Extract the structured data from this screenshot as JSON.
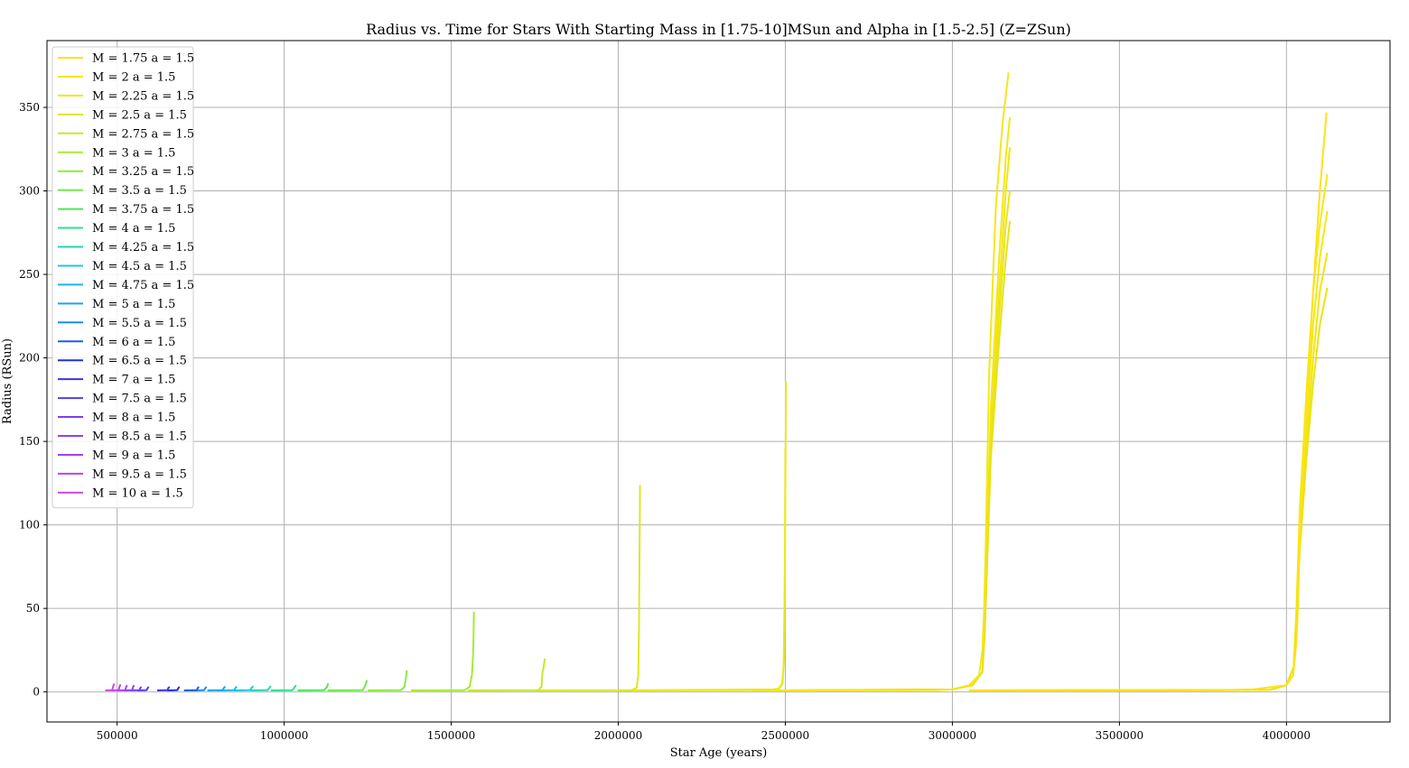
{
  "chart_data": {
    "type": "line",
    "title": "Radius vs. Time for Stars With Starting Mass in [1.75-10]MSun and Alpha in [1.5-2.5] (Z=ZSun)",
    "xlabel": "Star Age (years)",
    "ylabel": "Radius (RSun)",
    "xlim": [
      290000,
      4310000
    ],
    "ylim": [
      -18,
      390
    ],
    "x_ticks": [
      500000,
      1000000,
      1500000,
      2000000,
      2500000,
      3000000,
      3500000,
      4000000
    ],
    "x_tick_labels": [
      "500000",
      "1000000",
      "1500000",
      "2000000",
      "2500000",
      "3000000",
      "3500000",
      "4000000"
    ],
    "y_ticks": [
      0,
      50,
      100,
      150,
      200,
      250,
      300,
      350
    ],
    "y_tick_labels": [
      "0",
      "50",
      "100",
      "150",
      "200",
      "250",
      "300",
      "350"
    ],
    "grid": true,
    "legend_position": "upper-left",
    "series": [
      {
        "name": "M = 1.75 a = 1.5",
        "color": "#ffe119",
        "x": [
          3050000,
          3800000,
          3900000,
          4000000,
          4020000,
          4030000,
          4035000,
          4040000,
          4060000,
          4080000,
          4100000,
          4120000
        ],
        "y": [
          0.9,
          1.0,
          1.5,
          4,
          10,
          30,
          55,
          100,
          170,
          240,
          300,
          347
        ]
      },
      {
        "name": "M = 2 a = 1.5",
        "color": "#f5e61c",
        "x": [
          2400000,
          2950000,
          3000000,
          3050000,
          3080000,
          3090000,
          3095000,
          3100000,
          3110000,
          3130000,
          3150000,
          3168000
        ],
        "y": [
          0.9,
          1.0,
          1.5,
          4,
          10,
          25,
          50,
          90,
          190,
          290,
          340,
          371
        ]
      },
      {
        "name": "M = 2.25 a = 1.5",
        "color": "#ebe81f",
        "x": [
          2000000,
          2450000,
          2480000,
          2490000,
          2495000,
          2498000,
          2500000,
          2502000
        ],
        "y": [
          0.9,
          1.0,
          2.0,
          5,
          15,
          60,
          120,
          186
        ]
      },
      {
        "name": "M = 2.5 a = 1.5",
        "color": "#dbe824",
        "x": [
          1750000,
          2040000,
          2055000,
          2060000,
          2062000,
          2064000,
          2065000
        ],
        "y": [
          0.9,
          1.0,
          2.5,
          10,
          40,
          90,
          124
        ]
      },
      {
        "name": "M = 2.75 a = 1.5",
        "color": "#c5e82a",
        "x": [
          1550000,
          1760000,
          1770000,
          1773000,
          1776000,
          1778000,
          1780000
        ],
        "y": [
          0.9,
          1.0,
          3,
          12,
          14,
          17,
          20
        ]
      },
      {
        "name": "M = 3 a = 1.5",
        "color": "#a8ea34",
        "x": [
          1380000,
          1540000,
          1555000,
          1562000,
          1566000,
          1568000
        ],
        "y": [
          0.9,
          1.0,
          3,
          10,
          25,
          48
        ]
      },
      {
        "name": "M = 3.25 a = 1.5",
        "color": "#8ceb3e",
        "x": [
          1250000,
          1350000,
          1360000,
          1364000,
          1367000
        ],
        "y": [
          0.9,
          1.0,
          3,
          8,
          13
        ]
      },
      {
        "name": "M = 3.5 a = 1.5",
        "color": "#6fea48",
        "x": [
          1130000,
          1235000,
          1243000,
          1248000
        ],
        "y": [
          0.9,
          1.0,
          4,
          7
        ]
      },
      {
        "name": "M = 3.75 a = 1.5",
        "color": "#4ee65c",
        "x": [
          1040000,
          1120000,
          1128000,
          1132000
        ],
        "y": [
          0.9,
          1.0,
          3,
          5
        ]
      },
      {
        "name": "M = 4 a = 1.5",
        "color": "#2fe08a",
        "x": [
          960000,
          1025000,
          1032000,
          1036000
        ],
        "y": [
          0.9,
          1.0,
          3,
          4
        ]
      },
      {
        "name": "M = 4.25 a = 1.5",
        "color": "#22d6b4",
        "x": [
          900000,
          950000,
          956000,
          960000
        ],
        "y": [
          0.9,
          1.0,
          2.5,
          3.5
        ]
      },
      {
        "name": "M = 4.5 a = 1.5",
        "color": "#1ec8d8",
        "x": [
          850000,
          898000,
          903000,
          907000
        ],
        "y": [
          0.9,
          1.0,
          2.5,
          3.5
        ]
      },
      {
        "name": "M = 4.75 a = 1.5",
        "color": "#1cb6ec",
        "x": [
          800000,
          850000,
          855000,
          858000
        ],
        "y": [
          0.9,
          1.0,
          2.5,
          3.2
        ]
      },
      {
        "name": "M = 5 a = 1.5",
        "color": "#1aa4ee",
        "x": [
          770000,
          815000,
          820000,
          824000
        ],
        "y": [
          0.9,
          1.0,
          2.5,
          3.2
        ]
      },
      {
        "name": "M = 5.5 a = 1.5",
        "color": "#188cf0",
        "x": [
          720000,
          760000,
          765000,
          768000
        ],
        "y": [
          0.9,
          1.0,
          2.5,
          3.0
        ]
      },
      {
        "name": "M = 6 a = 1.5",
        "color": "#1a5fe0",
        "x": [
          700000,
          738000,
          742000,
          745000
        ],
        "y": [
          0.9,
          1.0,
          2.5,
          3.0
        ]
      },
      {
        "name": "M = 6.5 a = 1.5",
        "color": "#1f2fe8",
        "x": [
          650000,
          680000,
          684000,
          687000
        ],
        "y": [
          0.9,
          1.0,
          2.5,
          3.0
        ]
      },
      {
        "name": "M = 7 a = 1.5",
        "color": "#3a35e0",
        "x": [
          620000,
          650000,
          654000,
          657000
        ],
        "y": [
          0.9,
          1.0,
          2.5,
          3.0
        ]
      },
      {
        "name": "M = 7.5 a = 1.5",
        "color": "#5a3ae8",
        "x": [
          560000,
          588000,
          592000,
          595000
        ],
        "y": [
          0.9,
          1.0,
          2.5,
          3.0
        ]
      },
      {
        "name": "M = 8 a = 1.5",
        "color": "#7a3ef0",
        "x": [
          540000,
          566000,
          570000,
          573000
        ],
        "y": [
          0.9,
          1.0,
          2.5,
          3.0
        ]
      },
      {
        "name": "M = 8.5 a = 1.5",
        "color": "#8f40f0",
        "x": [
          520000,
          545000,
          548000,
          551000
        ],
        "y": [
          0.9,
          1.0,
          3,
          4
        ]
      },
      {
        "name": "M = 9 a = 1.5",
        "color": "#a540ec",
        "x": [
          500000,
          524000,
          527000,
          530000
        ],
        "y": [
          0.9,
          1.0,
          3,
          4
        ]
      },
      {
        "name": "M = 9.5 a = 1.5",
        "color": "#b944e6",
        "x": [
          480000,
          504000,
          507000,
          510000
        ],
        "y": [
          0.9,
          1.0,
          3,
          4.5
        ]
      },
      {
        "name": "M = 10 a = 1.5",
        "color": "#c84be0",
        "x": [
          465000,
          485000,
          488000,
          491000
        ],
        "y": [
          0.9,
          1.0,
          3,
          5
        ]
      }
    ],
    "extra_tracks_unlabeled": [
      {
        "color": "#f6ea12",
        "x": [
          3050000,
          3950000,
          4000000,
          4022000,
          4030000,
          4040000,
          4060000,
          4080000,
          4100000,
          4122000
        ],
        "y": [
          0.9,
          1.2,
          4,
          15,
          50,
          110,
          180,
          240,
          280,
          310
        ]
      },
      {
        "color": "#f2e812",
        "x": [
          3050000,
          3950000,
          4000000,
          4022000,
          4030000,
          4040000,
          4060000,
          4080000,
          4100000,
          4122000
        ],
        "y": [
          0.9,
          1.2,
          4,
          15,
          48,
          100,
          160,
          220,
          260,
          288
        ]
      },
      {
        "color": "#eee612",
        "x": [
          3050000,
          3950000,
          4000000,
          4022000,
          4030000,
          4040000,
          4060000,
          4080000,
          4100000,
          4122000
        ],
        "y": [
          0.9,
          1.2,
          4,
          15,
          45,
          95,
          150,
          200,
          240,
          263
        ]
      },
      {
        "color": "#eae412",
        "x": [
          3050000,
          3950000,
          4000000,
          4022000,
          4030000,
          4040000,
          4060000,
          4080000,
          4100000,
          4122000
        ],
        "y": [
          0.9,
          1.2,
          4,
          15,
          42,
          85,
          140,
          185,
          220,
          242
        ]
      },
      {
        "color": "#f4e714",
        "x": [
          2500000,
          3000000,
          3060000,
          3090000,
          3097000,
          3102000,
          3115000,
          3140000,
          3160000,
          3172000
        ],
        "y": [
          0.9,
          1.5,
          4,
          12,
          40,
          80,
          170,
          260,
          320,
          344
        ]
      },
      {
        "color": "#f0e614",
        "x": [
          2500000,
          3000000,
          3060000,
          3090000,
          3097000,
          3102000,
          3115000,
          3140000,
          3160000,
          3172000
        ],
        "y": [
          0.9,
          1.5,
          4,
          12,
          40,
          75,
          160,
          240,
          300,
          326
        ]
      },
      {
        "color": "#ece414",
        "x": [
          2500000,
          3000000,
          3060000,
          3090000,
          3097000,
          3102000,
          3115000,
          3140000,
          3160000,
          3172000
        ],
        "y": [
          0.9,
          1.5,
          4,
          12,
          38,
          70,
          150,
          225,
          280,
          300
        ]
      },
      {
        "color": "#e8e214",
        "x": [
          2500000,
          3000000,
          3060000,
          3090000,
          3097000,
          3102000,
          3115000,
          3140000,
          3160000,
          3172000
        ],
        "y": [
          0.9,
          1.5,
          4,
          12,
          35,
          65,
          140,
          210,
          260,
          282
        ]
      },
      {
        "color": "#e6e818",
        "x": [
          2000000,
          2480000,
          2492000,
          2496000,
          2499000,
          2500000
        ],
        "y": [
          0.9,
          1.5,
          5,
          20,
          80,
          146
        ]
      }
    ]
  }
}
